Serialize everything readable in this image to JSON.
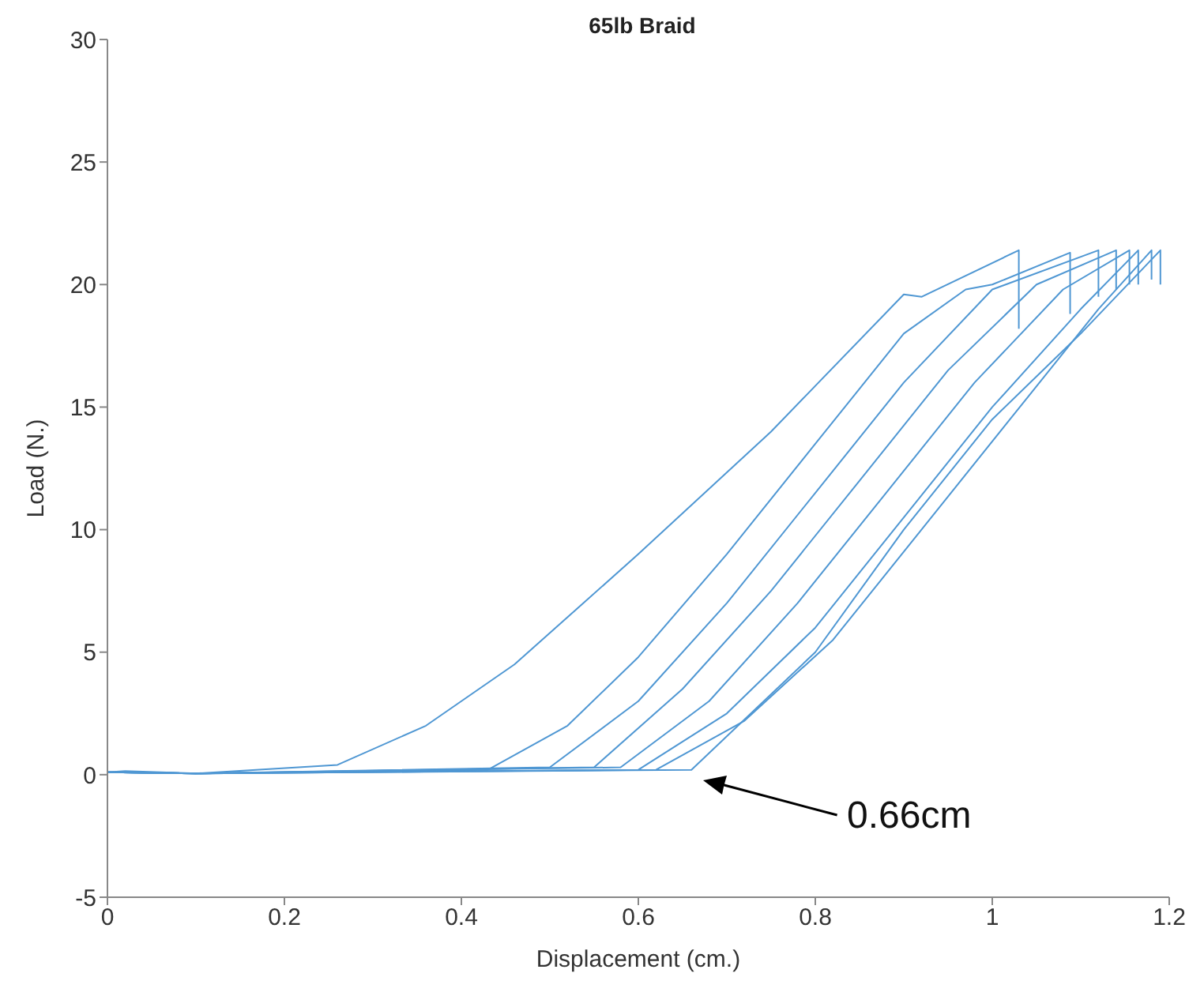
{
  "chart_data": {
    "type": "line",
    "title": "65lb Braid",
    "xlabel": "Displacement (cm.)",
    "ylabel": "Load (N.)",
    "xlim": [
      0,
      1.2
    ],
    "xticks": [
      0,
      0.2,
      0.4,
      0.6,
      0.8,
      1,
      1.2
    ],
    "ylim": [
      -5,
      30
    ],
    "yticks": [
      -5,
      0,
      5,
      10,
      15,
      20,
      25,
      30
    ],
    "marker": "none",
    "line_style": "solid",
    "annotations": [
      "0.66cm"
    ],
    "series": [
      {
        "color": "#4f97d3",
        "x": [
          0,
          0.02,
          0.1,
          0.26,
          0.36,
          0.46,
          0.6,
          0.75,
          0.9,
          0.92,
          1.03,
          1.03
        ],
        "values": [
          0.1,
          0.15,
          0.05,
          0.4,
          2,
          4.5,
          9,
          14,
          19.6,
          19.5,
          21.4,
          18.2
        ]
      },
      {
        "color": "#4f97d3",
        "x": [
          0,
          0.1,
          0.43,
          0.52,
          0.6,
          0.7,
          0.8,
          0.9,
          0.97,
          1.0,
          1.088,
          1.088
        ],
        "values": [
          0.1,
          0.05,
          0.2,
          2,
          4.8,
          9,
          13.5,
          18,
          19.8,
          20,
          21.3,
          18.8
        ]
      },
      {
        "color": "#4f97d3",
        "x": [
          0,
          0.1,
          0.5,
          0.6,
          0.7,
          0.8,
          0.9,
          1.0,
          1.12,
          1.12
        ],
        "values": [
          0.1,
          0.05,
          0.3,
          3,
          7,
          11.5,
          16,
          19.8,
          21.4,
          19.5
        ]
      },
      {
        "color": "#4f97d3",
        "x": [
          0,
          0.1,
          0.55,
          0.65,
          0.75,
          0.85,
          0.95,
          1.05,
          1.14,
          1.14
        ],
        "values": [
          0.1,
          0.05,
          0.3,
          3.5,
          7.5,
          12,
          16.5,
          20,
          21.4,
          19.8
        ]
      },
      {
        "color": "#4f97d3",
        "x": [
          0,
          0.1,
          0.58,
          0.68,
          0.78,
          0.88,
          0.98,
          1.08,
          1.155,
          1.155
        ],
        "values": [
          0.1,
          0.05,
          0.3,
          3,
          7,
          11.5,
          16,
          19.8,
          21.4,
          20
        ]
      },
      {
        "color": "#4f97d3",
        "x": [
          0,
          0.1,
          0.6,
          0.7,
          0.8,
          0.9,
          1.0,
          1.1,
          1.165,
          1.165
        ],
        "values": [
          0.1,
          0.05,
          0.2,
          2.5,
          6,
          10.5,
          15,
          19,
          21.4,
          20
        ]
      },
      {
        "color": "#4f97d3",
        "x": [
          0,
          0.1,
          0.62,
          0.72,
          0.82,
          0.92,
          1.02,
          1.12,
          1.18,
          1.18
        ],
        "values": [
          0.1,
          0.05,
          0.2,
          2.2,
          5.5,
          10,
          14.5,
          19,
          21.4,
          20.2
        ]
      },
      {
        "color": "#4f97d3",
        "x": [
          0,
          0.1,
          0.66,
          0.8,
          0.9,
          1.0,
          1.1,
          1.19,
          1.19
        ],
        "values": [
          0.1,
          0.05,
          0.2,
          5,
          10,
          14.5,
          18,
          21.4,
          20
        ]
      }
    ]
  }
}
